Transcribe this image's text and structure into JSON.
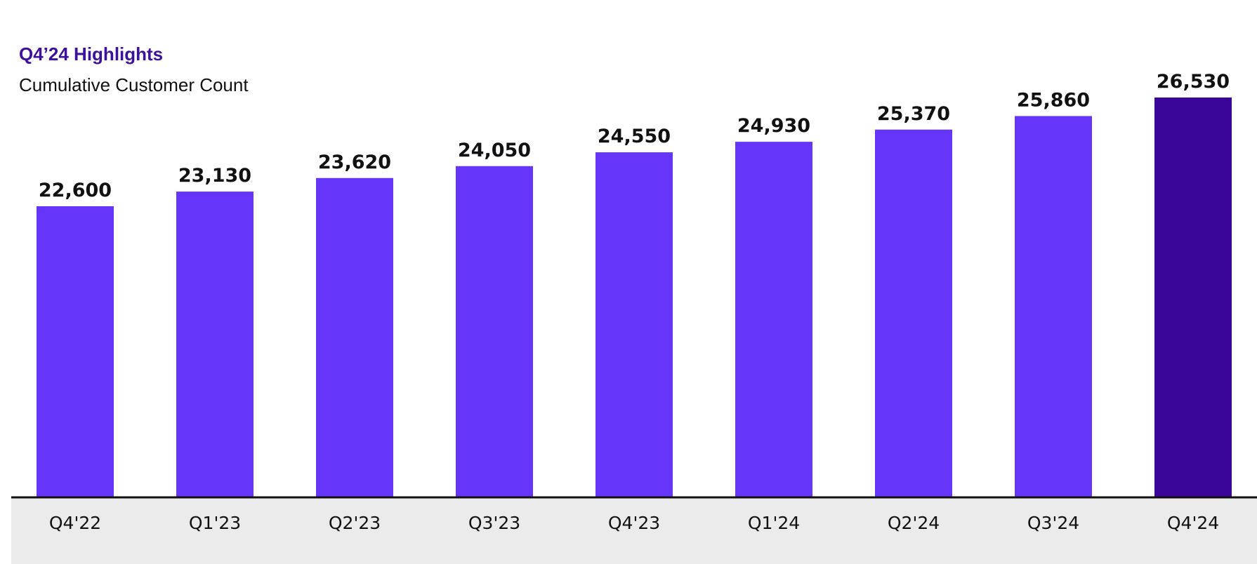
{
  "header": {
    "title": "Q4’24 Highlights",
    "subtitle": "Cumulative Customer Count"
  },
  "colors": {
    "bar": "#6536fa",
    "bar_highlight": "#3a0599",
    "axis_line": "#111111",
    "band": "#ebebeb"
  },
  "chart_data": {
    "type": "bar",
    "title": "Q4’24 Highlights",
    "subtitle": "Cumulative Customer Count",
    "categories": [
      "Q4'22",
      "Q1'23",
      "Q2'23",
      "Q3'23",
      "Q4'23",
      "Q1'24",
      "Q2'24",
      "Q3'24",
      "Q4'24"
    ],
    "values": [
      22600,
      23130,
      23620,
      24050,
      24550,
      24930,
      25370,
      25860,
      26530
    ],
    "value_labels": [
      "22,600",
      "23,130",
      "23,620",
      "24,050",
      "24,550",
      "24,930",
      "25,370",
      "25,860",
      "26,530"
    ],
    "highlight_category": "Q4'24",
    "xlabel": "",
    "ylabel": "",
    "grid": false,
    "legend": "none"
  }
}
